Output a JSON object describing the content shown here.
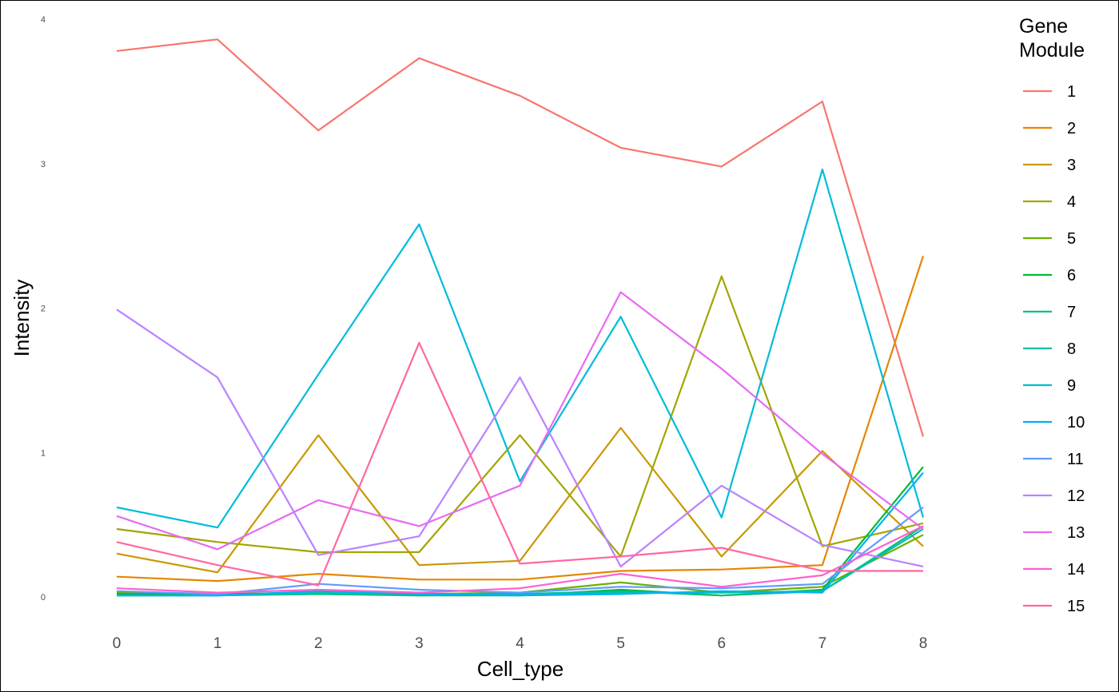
{
  "chart_data": {
    "type": "line",
    "xlabel": "Cell_type",
    "ylabel": "Intensity",
    "x": [
      0,
      1,
      2,
      3,
      4,
      5,
      6,
      7,
      8
    ],
    "xlim": [
      0,
      8
    ],
    "ylim": [
      0,
      4
    ],
    "y_ticks": [
      "0",
      "1",
      "2",
      "3",
      "4"
    ],
    "x_ticks": [
      "0",
      "1",
      "2",
      "3",
      "4",
      "5",
      "6",
      "7",
      "8"
    ],
    "grid": false,
    "legend": {
      "title_line1": "Gene",
      "title_line2": "Module",
      "position": "right"
    },
    "series": [
      {
        "name": "1",
        "color": "#F8766D",
        "values": [
          3.78,
          3.86,
          3.23,
          3.73,
          3.47,
          3.11,
          2.98,
          3.43,
          1.11
        ]
      },
      {
        "name": "2",
        "color": "#E58700",
        "values": [
          0.14,
          0.11,
          0.16,
          0.12,
          0.12,
          0.18,
          0.19,
          0.22,
          2.36
        ]
      },
      {
        "name": "3",
        "color": "#C99800",
        "values": [
          0.3,
          0.17,
          1.12,
          0.22,
          0.25,
          1.17,
          0.28,
          1.01,
          0.35
        ]
      },
      {
        "name": "4",
        "color": "#A3A500",
        "values": [
          0.47,
          0.38,
          0.31,
          0.31,
          1.12,
          0.28,
          2.22,
          0.35,
          0.51
        ]
      },
      {
        "name": "5",
        "color": "#6BB100",
        "values": [
          0.03,
          0.02,
          0.03,
          0.02,
          0.03,
          0.1,
          0.03,
          0.07,
          0.43
        ]
      },
      {
        "name": "6",
        "color": "#00BA38",
        "values": [
          0.02,
          0.02,
          0.03,
          0.01,
          0.01,
          0.05,
          0.01,
          0.05,
          0.9
        ]
      },
      {
        "name": "7",
        "color": "#00BF7D",
        "values": [
          0.01,
          0.01,
          0.02,
          0.01,
          0.02,
          0.04,
          0.01,
          0.04,
          0.49
        ]
      },
      {
        "name": "8",
        "color": "#00C0AF",
        "values": [
          0.01,
          0.01,
          0.03,
          0.02,
          0.02,
          0.03,
          0.03,
          0.04,
          0.47
        ]
      },
      {
        "name": "9",
        "color": "#00BCD8",
        "values": [
          0.62,
          0.48,
          1.54,
          2.58,
          0.8,
          1.94,
          0.55,
          2.96,
          0.55
        ]
      },
      {
        "name": "10",
        "color": "#00B0F6",
        "values": [
          0.01,
          0.01,
          0.04,
          0.02,
          0.01,
          0.02,
          0.04,
          0.03,
          0.86
        ]
      },
      {
        "name": "11",
        "color": "#619CFF",
        "values": [
          0.04,
          0.02,
          0.09,
          0.05,
          0.03,
          0.07,
          0.06,
          0.09,
          0.62
        ]
      },
      {
        "name": "12",
        "color": "#B983FF",
        "values": [
          1.99,
          1.52,
          0.29,
          0.42,
          1.52,
          0.21,
          0.77,
          0.36,
          0.21
        ]
      },
      {
        "name": "13",
        "color": "#E76BF3",
        "values": [
          0.56,
          0.33,
          0.67,
          0.49,
          0.77,
          2.11,
          1.58,
          0.99,
          0.47
        ]
      },
      {
        "name": "14",
        "color": "#FD61D1",
        "values": [
          0.06,
          0.03,
          0.05,
          0.03,
          0.06,
          0.16,
          0.07,
          0.15,
          0.49
        ]
      },
      {
        "name": "15",
        "color": "#FF67A4",
        "values": [
          0.38,
          0.22,
          0.08,
          1.76,
          0.23,
          0.28,
          0.34,
          0.18,
          0.18
        ]
      }
    ]
  }
}
